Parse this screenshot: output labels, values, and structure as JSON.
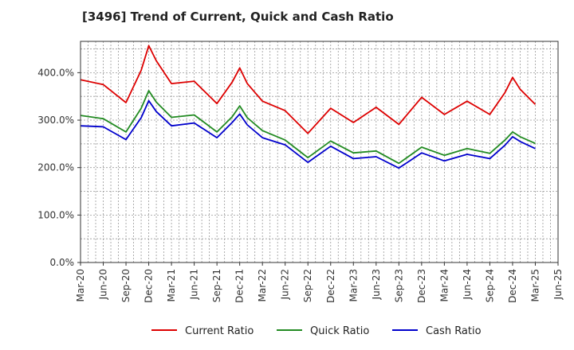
{
  "chart_data": {
    "type": "line",
    "title": "[3496]  Trend of Current, Quick and Cash Ratio",
    "xlabel": "",
    "ylabel": "",
    "ylim": [
      0,
      466
    ],
    "yticks": [
      0,
      100,
      200,
      300,
      400
    ],
    "ytick_labels": [
      "0.0%",
      "100.0%",
      "200.0%",
      "300.0%",
      "400.0%"
    ],
    "xtick_labels": [
      "Mar-20",
      "Jun-20",
      "Sep-20",
      "Dec-20",
      "Mar-21",
      "Jun-21",
      "Sep-21",
      "Dec-21",
      "Mar-22",
      "Jun-22",
      "Sep-22",
      "Dec-22",
      "Mar-23",
      "Jun-23",
      "Sep-23",
      "Dec-23",
      "Mar-24",
      "Jun-24",
      "Sep-24",
      "Dec-24",
      "Mar-25",
      "Jun-25"
    ],
    "x_months": [
      "Mar-20",
      "Apr-20",
      "May-20",
      "Jun-20",
      "Jul-20",
      "Aug-20",
      "Sep-20",
      "Oct-20",
      "Nov-20",
      "Dec-20",
      "Jan-21",
      "Feb-21",
      "Mar-21",
      "Apr-21",
      "May-21",
      "Jun-21",
      "Jul-21",
      "Aug-21",
      "Sep-21",
      "Oct-21",
      "Nov-21",
      "Dec-21",
      "Jan-22",
      "Feb-22",
      "Mar-22",
      "Apr-22",
      "May-22",
      "Jun-22",
      "Jul-22",
      "Aug-22",
      "Sep-22",
      "Oct-22",
      "Nov-22",
      "Dec-22",
      "Jan-23",
      "Feb-23",
      "Mar-23",
      "Apr-23",
      "May-23",
      "Jun-23",
      "Jul-23",
      "Aug-23",
      "Sep-23",
      "Oct-23",
      "Nov-23",
      "Dec-23",
      "Jan-24",
      "Feb-24",
      "Mar-24",
      "Apr-24",
      "May-24",
      "Jun-24",
      "Jul-24",
      "Aug-24",
      "Sep-24",
      "Oct-24",
      "Nov-24",
      "Dec-24",
      "Jan-25",
      "Feb-25",
      "Mar-25",
      "Apr-25",
      "May-25",
      "Jun-25"
    ],
    "series": [
      {
        "name": "Current Ratio",
        "color": "#dd0000",
        "points": [
          [
            0,
            385
          ],
          [
            3,
            375
          ],
          [
            6,
            337
          ],
          [
            8,
            405
          ],
          [
            9,
            457
          ],
          [
            10,
            425
          ],
          [
            12,
            377
          ],
          [
            15,
            382
          ],
          [
            18,
            335
          ],
          [
            20,
            380
          ],
          [
            21,
            410
          ],
          [
            22,
            377
          ],
          [
            24,
            340
          ],
          [
            27,
            320
          ],
          [
            30,
            272
          ],
          [
            33,
            325
          ],
          [
            36,
            295
          ],
          [
            39,
            327
          ],
          [
            42,
            291
          ],
          [
            45,
            348
          ],
          [
            48,
            312
          ],
          [
            51,
            340
          ],
          [
            54,
            312
          ],
          [
            56,
            358
          ],
          [
            57,
            390
          ],
          [
            58,
            365
          ],
          [
            60,
            333
          ]
        ]
      },
      {
        "name": "Quick Ratio",
        "color": "#228b22",
        "points": [
          [
            0,
            310
          ],
          [
            3,
            303
          ],
          [
            6,
            275
          ],
          [
            8,
            325
          ],
          [
            9,
            362
          ],
          [
            10,
            338
          ],
          [
            12,
            306
          ],
          [
            15,
            311
          ],
          [
            18,
            275
          ],
          [
            20,
            307
          ],
          [
            21,
            330
          ],
          [
            22,
            305
          ],
          [
            24,
            278
          ],
          [
            27,
            258
          ],
          [
            30,
            221
          ],
          [
            33,
            256
          ],
          [
            36,
            231
          ],
          [
            39,
            235
          ],
          [
            42,
            209
          ],
          [
            45,
            243
          ],
          [
            48,
            226
          ],
          [
            51,
            240
          ],
          [
            54,
            230
          ],
          [
            56,
            258
          ],
          [
            57,
            275
          ],
          [
            58,
            265
          ],
          [
            60,
            251
          ]
        ]
      },
      {
        "name": "Cash Ratio",
        "color": "#0000cc",
        "points": [
          [
            0,
            288
          ],
          [
            3,
            286
          ],
          [
            6,
            259
          ],
          [
            8,
            305
          ],
          [
            9,
            341
          ],
          [
            10,
            318
          ],
          [
            12,
            288
          ],
          [
            15,
            294
          ],
          [
            18,
            263
          ],
          [
            20,
            295
          ],
          [
            21,
            313
          ],
          [
            22,
            290
          ],
          [
            24,
            263
          ],
          [
            27,
            248
          ],
          [
            30,
            211
          ],
          [
            33,
            245
          ],
          [
            36,
            219
          ],
          [
            39,
            223
          ],
          [
            42,
            199
          ],
          [
            45,
            231
          ],
          [
            48,
            214
          ],
          [
            51,
            228
          ],
          [
            54,
            219
          ],
          [
            56,
            247
          ],
          [
            57,
            265
          ],
          [
            58,
            255
          ],
          [
            60,
            240
          ]
        ]
      }
    ],
    "legend": "bottom-center",
    "grid": true
  }
}
